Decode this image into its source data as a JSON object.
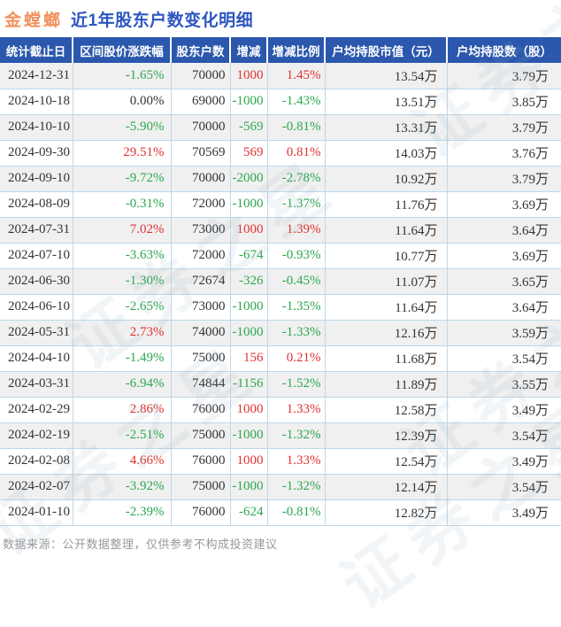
{
  "title": {
    "stock_name": "金螳螂",
    "subtitle": "近1年股东户数变化明细"
  },
  "chart_data": {
    "type": "table",
    "title": "金螳螂 近1年股东户数变化明细",
    "columns": [
      "统计截止日",
      "区间股价涨跌幅",
      "股东户数",
      "增减",
      "增减比例",
      "户均持股市值（元）",
      "户均持股数（股）"
    ],
    "rows": [
      [
        "2024-12-31",
        "-1.65%",
        "70000",
        "1000",
        "1.45%",
        "13.54万",
        "3.79万"
      ],
      [
        "2024-10-18",
        "0.00%",
        "69000",
        "-1000",
        "-1.43%",
        "13.51万",
        "3.85万"
      ],
      [
        "2024-10-10",
        "-5.90%",
        "70000",
        "-569",
        "-0.81%",
        "13.31万",
        "3.79万"
      ],
      [
        "2024-09-30",
        "29.51%",
        "70569",
        "569",
        "0.81%",
        "14.03万",
        "3.76万"
      ],
      [
        "2024-09-10",
        "-9.72%",
        "70000",
        "-2000",
        "-2.78%",
        "10.92万",
        "3.79万"
      ],
      [
        "2024-08-09",
        "-0.31%",
        "72000",
        "-1000",
        "-1.37%",
        "11.76万",
        "3.69万"
      ],
      [
        "2024-07-31",
        "7.02%",
        "73000",
        "1000",
        "1.39%",
        "11.64万",
        "3.64万"
      ],
      [
        "2024-07-10",
        "-3.63%",
        "72000",
        "-674",
        "-0.93%",
        "10.77万",
        "3.69万"
      ],
      [
        "2024-06-30",
        "-1.30%",
        "72674",
        "-326",
        "-0.45%",
        "11.07万",
        "3.65万"
      ],
      [
        "2024-06-10",
        "-2.65%",
        "73000",
        "-1000",
        "-1.35%",
        "11.64万",
        "3.64万"
      ],
      [
        "2024-05-31",
        "2.73%",
        "74000",
        "-1000",
        "-1.33%",
        "12.16万",
        "3.59万"
      ],
      [
        "2024-04-10",
        "-1.49%",
        "75000",
        "156",
        "0.21%",
        "11.68万",
        "3.54万"
      ],
      [
        "2024-03-31",
        "-6.94%",
        "74844",
        "-1156",
        "-1.52%",
        "11.89万",
        "3.55万"
      ],
      [
        "2024-02-29",
        "2.86%",
        "76000",
        "1000",
        "1.33%",
        "12.58万",
        "3.49万"
      ],
      [
        "2024-02-19",
        "-2.51%",
        "75000",
        "-1000",
        "-1.32%",
        "12.39万",
        "3.54万"
      ],
      [
        "2024-02-08",
        "4.66%",
        "76000",
        "1000",
        "1.33%",
        "12.54万",
        "3.49万"
      ],
      [
        "2024-02-07",
        "-3.92%",
        "75000",
        "-1000",
        "-1.32%",
        "12.14万",
        "3.54万"
      ],
      [
        "2024-01-10",
        "-2.39%",
        "76000",
        "-624",
        "-0.81%",
        "12.82万",
        "3.49万"
      ]
    ],
    "colored_columns": [
      1,
      3,
      4
    ],
    "cell_names": [
      "cell-date",
      "cell-price-change",
      "cell-holder-count",
      "cell-change",
      "cell-change-pct",
      "cell-avg-value",
      "cell-avg-shares"
    ]
  },
  "footer": {
    "source_note": "数据来源：公开数据整理，仅供参考不构成投资建议"
  },
  "watermark": {
    "text": "证券之星"
  },
  "colors": {
    "up": "#e13232",
    "down": "#2ca74e",
    "neutral": "#333333",
    "header_bg": "#2b58ad",
    "title_stock": "#f0925e",
    "title_text": "#2d56c0",
    "row_alt": "#f0f0f0",
    "border": "#bdd8ea"
  }
}
